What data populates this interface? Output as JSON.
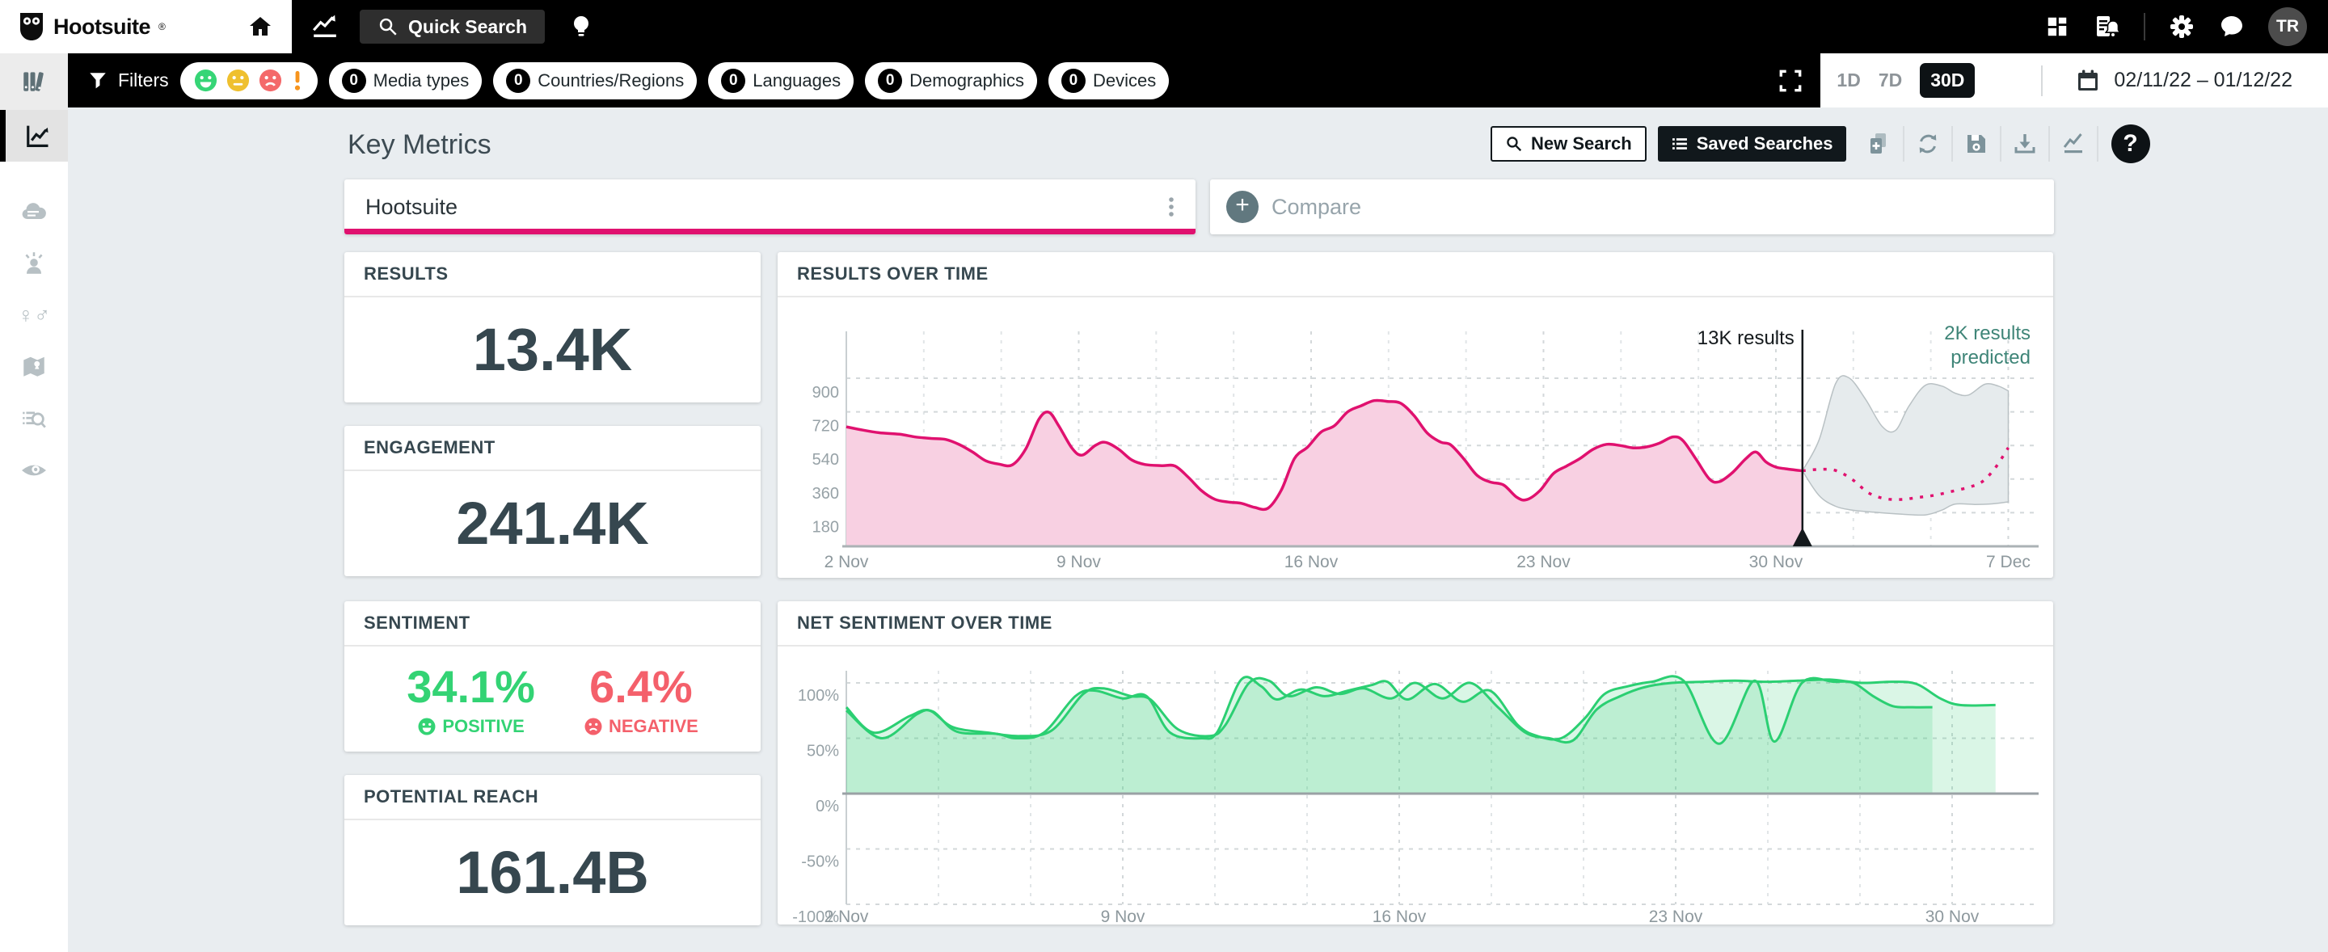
{
  "topbar": {
    "brand": "Hootsuite",
    "reg": "®",
    "quick_search": "Quick Search",
    "avatar": "TR"
  },
  "filterbar": {
    "filters_label": "Filters",
    "pills": [
      {
        "count": "0",
        "label": "Media types"
      },
      {
        "count": "0",
        "label": "Countries/Regions"
      },
      {
        "count": "0",
        "label": "Languages"
      },
      {
        "count": "0",
        "label": "Demographics"
      },
      {
        "count": "0",
        "label": "Devices"
      }
    ],
    "ranges": [
      {
        "label": "1D",
        "selected": false
      },
      {
        "label": "7D",
        "selected": false
      },
      {
        "label": "30D",
        "selected": true
      }
    ],
    "date_range": "02/11/22 – 01/12/22"
  },
  "page": {
    "title": "Key Metrics",
    "new_search": "New Search",
    "saved_searches": "Saved Searches",
    "help": "?"
  },
  "search": {
    "query": "Hootsuite",
    "compare_label": "Compare",
    "plus": "+"
  },
  "metrics": {
    "results": {
      "label": "RESULTS",
      "value": "13.4K"
    },
    "engagement": {
      "label": "ENGAGEMENT",
      "value": "241.4K"
    },
    "sentiment": {
      "label": "SENTIMENT",
      "positive_value": "34.1%",
      "positive_label": "POSITIVE",
      "negative_value": "6.4%",
      "negative_label": "NEGATIVE"
    },
    "reach": {
      "label": "POTENTIAL REACH",
      "value": "161.4B"
    }
  },
  "colors": {
    "accent_pink": "#e0116f",
    "positive_green": "#33d374",
    "negative_red": "#f4606b",
    "forecast_teal": "#3f8578",
    "dark_slate": "#36474f"
  },
  "chart_data": [
    {
      "id": "results-over-time",
      "type": "area",
      "title": "RESULTS OVER TIME",
      "x_unit": "days since 2 Nov 2022",
      "x_ticks": [
        {
          "d": 0,
          "label": "2 Nov"
        },
        {
          "d": 7,
          "label": "9 Nov"
        },
        {
          "d": 14,
          "label": "16 Nov"
        },
        {
          "d": 21,
          "label": "23 Nov"
        },
        {
          "d": 28,
          "label": "30 Nov"
        },
        {
          "d": 35,
          "label": "7 Dec"
        }
      ],
      "y_ticks": [
        180,
        360,
        540,
        720,
        900
      ],
      "ylim": [
        0,
        980
      ],
      "series": {
        "name": "results",
        "points": [
          [
            0,
            640
          ],
          [
            0.5,
            622
          ],
          [
            1,
            608
          ],
          [
            1.6,
            600
          ],
          [
            2.1,
            585
          ],
          [
            2.6,
            577
          ],
          [
            3,
            572
          ],
          [
            3.4,
            545
          ],
          [
            3.8,
            505
          ],
          [
            4.2,
            458
          ],
          [
            4.6,
            440
          ],
          [
            5,
            436
          ],
          [
            5.4,
            520
          ],
          [
            5.8,
            680
          ],
          [
            6.1,
            718
          ],
          [
            6.4,
            645
          ],
          [
            6.8,
            525
          ],
          [
            7.1,
            488
          ],
          [
            7.5,
            540
          ],
          [
            7.8,
            557
          ],
          [
            8.2,
            520
          ],
          [
            8.6,
            462
          ],
          [
            9,
            438
          ],
          [
            9.5,
            432
          ],
          [
            9.9,
            430
          ],
          [
            10.3,
            370
          ],
          [
            10.7,
            298
          ],
          [
            11.1,
            252
          ],
          [
            11.5,
            237
          ],
          [
            11.9,
            230
          ],
          [
            12.3,
            208
          ],
          [
            12.7,
            204
          ],
          [
            13.1,
            300
          ],
          [
            13.5,
            470
          ],
          [
            13.9,
            532
          ],
          [
            14.3,
            612
          ],
          [
            14.7,
            645
          ],
          [
            15.1,
            720
          ],
          [
            15.5,
            752
          ],
          [
            15.9,
            780
          ],
          [
            16.3,
            776
          ],
          [
            16.7,
            766
          ],
          [
            17.1,
            700
          ],
          [
            17.5,
            606
          ],
          [
            17.9,
            558
          ],
          [
            18.2,
            544
          ],
          [
            18.6,
            468
          ],
          [
            19,
            380
          ],
          [
            19.4,
            344
          ],
          [
            19.8,
            328
          ],
          [
            20.2,
            262
          ],
          [
            20.5,
            250
          ],
          [
            20.9,
            300
          ],
          [
            21.3,
            390
          ],
          [
            21.7,
            430
          ],
          [
            22.1,
            470
          ],
          [
            22.5,
            520
          ],
          [
            22.9,
            546
          ],
          [
            23.3,
            540
          ],
          [
            23.7,
            527
          ],
          [
            24.1,
            532
          ],
          [
            24.5,
            553
          ],
          [
            24.9,
            586
          ],
          [
            25.2,
            566
          ],
          [
            25.6,
            465
          ],
          [
            26,
            360
          ],
          [
            26.3,
            346
          ],
          [
            26.7,
            396
          ],
          [
            27.1,
            470
          ],
          [
            27.4,
            505
          ],
          [
            27.7,
            452
          ],
          [
            28,
            424
          ],
          [
            28.3,
            415
          ],
          [
            28.8,
            404
          ]
        ]
      },
      "forecast": {
        "line": [
          [
            28.8,
            404
          ],
          [
            29.3,
            412
          ],
          [
            29.8,
            406
          ],
          [
            30.3,
            358
          ],
          [
            30.8,
            285
          ],
          [
            31.3,
            255
          ],
          [
            31.8,
            251
          ],
          [
            32.3,
            262
          ],
          [
            32.8,
            274
          ],
          [
            33.3,
            294
          ],
          [
            33.8,
            316
          ],
          [
            34.2,
            344
          ],
          [
            34.6,
            418
          ],
          [
            35,
            528
          ]
        ],
        "upper": [
          [
            28.8,
            404
          ],
          [
            29.3,
            570
          ],
          [
            29.8,
            872
          ],
          [
            30.2,
            902
          ],
          [
            30.7,
            788
          ],
          [
            31.2,
            642
          ],
          [
            31.6,
            620
          ],
          [
            32,
            748
          ],
          [
            32.5,
            862
          ],
          [
            33,
            858
          ],
          [
            33.4,
            820
          ],
          [
            33.8,
            810
          ],
          [
            34.3,
            868
          ],
          [
            34.7,
            858
          ],
          [
            35,
            832
          ]
        ],
        "lower": [
          [
            28.8,
            404
          ],
          [
            29.3,
            272
          ],
          [
            29.8,
            214
          ],
          [
            30.3,
            194
          ],
          [
            31,
            182
          ],
          [
            31.8,
            172
          ],
          [
            32.5,
            168
          ],
          [
            33,
            194
          ],
          [
            33.4,
            226
          ],
          [
            34,
            224
          ],
          [
            34.5,
            227
          ],
          [
            35,
            238
          ]
        ]
      },
      "marker": {
        "day": 28.8,
        "label": "13K results"
      },
      "annotation": {
        "lines": [
          "2K results",
          "predicted"
        ]
      }
    },
    {
      "id": "net-sentiment-over-time",
      "type": "area",
      "title": "NET SENTIMENT OVER TIME",
      "x_unit": "days since 2 Nov 2022",
      "x_ticks": [
        {
          "d": 0,
          "label": "2 Nov"
        },
        {
          "d": 7,
          "label": "9 Nov"
        },
        {
          "d": 14,
          "label": "16 Nov"
        },
        {
          "d": 21,
          "label": "23 Nov"
        },
        {
          "d": 28,
          "label": "30 Nov"
        }
      ],
      "y_ticks": [
        {
          "v": 100,
          "label": "100%"
        },
        {
          "v": 50,
          "label": "50%"
        },
        {
          "v": 0,
          "label": "0%"
        },
        {
          "v": -50,
          "label": "-50%"
        },
        {
          "v": -100,
          "label": "-100%"
        }
      ],
      "ylim": [
        -115,
        115
      ],
      "series": [
        {
          "name": "net sentiment",
          "points": [
            [
              0,
              75
            ],
            [
              0.9,
              50
            ],
            [
              1.8,
              72
            ],
            [
              2.2,
              74
            ],
            [
              2.8,
              56
            ],
            [
              3.8,
              54
            ],
            [
              4.3,
              50
            ],
            [
              5,
              55
            ],
            [
              5.8,
              88
            ],
            [
              6.3,
              93
            ],
            [
              7,
              86
            ],
            [
              7.6,
              88
            ],
            [
              8.2,
              55
            ],
            [
              9,
              50
            ],
            [
              9.4,
              56
            ],
            [
              10,
              103
            ],
            [
              10.5,
              97
            ],
            [
              10.9,
              85
            ],
            [
              11.5,
              94
            ],
            [
              12.1,
              88
            ],
            [
              12.7,
              93
            ],
            [
              13.3,
              98
            ],
            [
              13.7,
              101
            ],
            [
              14.2,
              85
            ],
            [
              14.9,
              99
            ],
            [
              15.6,
              83
            ],
            [
              16.3,
              93
            ],
            [
              17,
              62
            ],
            [
              17.5,
              52
            ],
            [
              18.1,
              50
            ],
            [
              18.7,
              68
            ],
            [
              19.2,
              90
            ],
            [
              19.8,
              97
            ],
            [
              20.4,
              101
            ],
            [
              21.2,
              102
            ],
            [
              22.1,
              45
            ],
            [
              23,
              102
            ],
            [
              23.5,
              47
            ],
            [
              24.2,
              100
            ],
            [
              25,
              101
            ],
            [
              25.5,
              100
            ],
            [
              26,
              88
            ],
            [
              26.5,
              79
            ],
            [
              27,
              78
            ],
            [
              27.5,
              78
            ]
          ]
        },
        {
          "name": "net sentiment (secondary)",
          "points": [
            [
              0,
              78
            ],
            [
              0.7,
              55
            ],
            [
              1.6,
              70
            ],
            [
              2.1,
              75
            ],
            [
              2.7,
              60
            ],
            [
              3.6,
              55
            ],
            [
              4.4,
              52
            ],
            [
              5.2,
              57
            ],
            [
              6,
              90
            ],
            [
              6.5,
              95
            ],
            [
              7.2,
              88
            ],
            [
              7.7,
              85
            ],
            [
              8.4,
              58
            ],
            [
              9.2,
              52
            ],
            [
              9.6,
              62
            ],
            [
              10.2,
              100
            ],
            [
              10.7,
              102
            ],
            [
              11.2,
              88
            ],
            [
              11.9,
              96
            ],
            [
              12.5,
              90
            ],
            [
              13.1,
              95
            ],
            [
              13.8,
              86
            ],
            [
              14.4,
              100
            ],
            [
              15.1,
              86
            ],
            [
              15.8,
              100
            ],
            [
              16.5,
              78
            ],
            [
              17.2,
              55
            ],
            [
              17.8,
              50
            ],
            [
              18.4,
              48
            ],
            [
              19,
              76
            ],
            [
              19.6,
              88
            ],
            [
              20.2,
              96
            ],
            [
              20.9,
              100
            ],
            [
              21.7,
              101
            ],
            [
              22.5,
              102
            ],
            [
              23.3,
              101
            ],
            [
              24.1,
              102
            ],
            [
              24.9,
              103
            ],
            [
              25.7,
              100
            ],
            [
              26.5,
              101
            ],
            [
              27.1,
              99
            ],
            [
              27.7,
              86
            ],
            [
              28.2,
              80
            ],
            [
              29.1,
              80
            ]
          ]
        }
      ]
    }
  ]
}
